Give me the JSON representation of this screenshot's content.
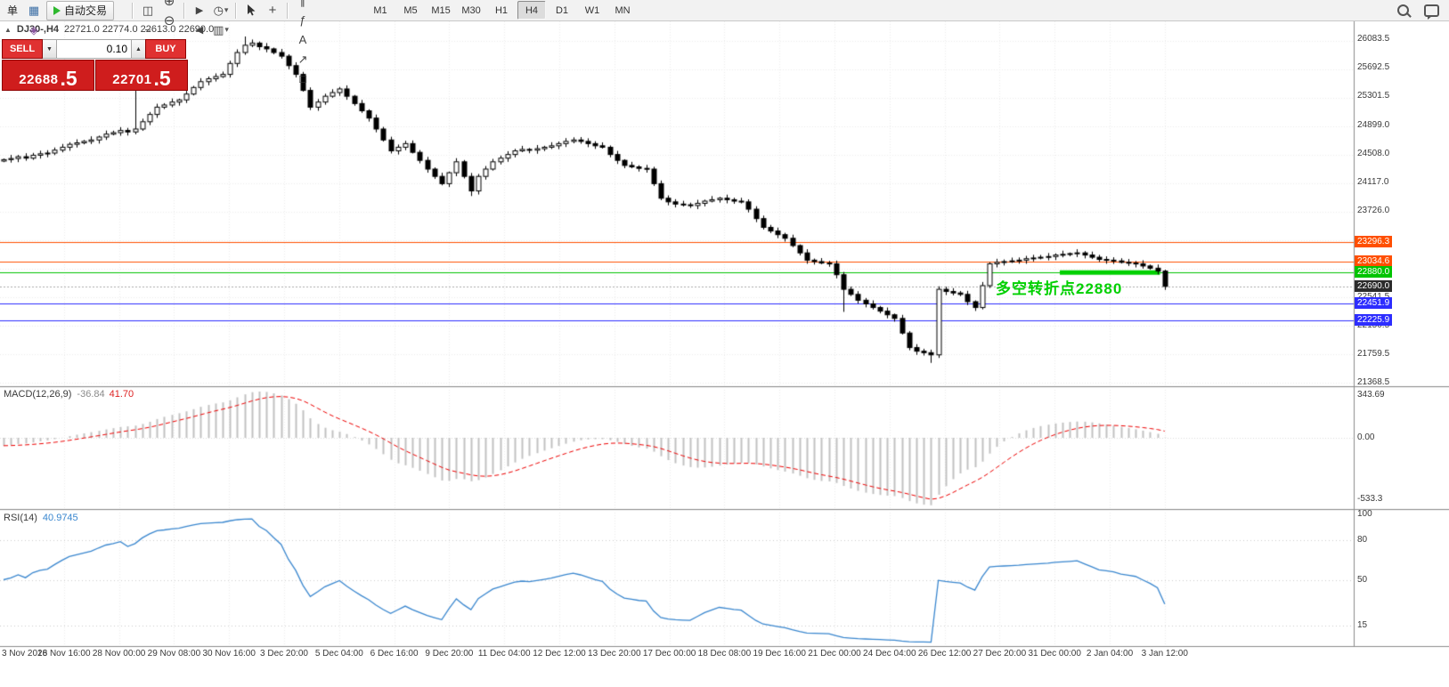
{
  "colors": {
    "toolbar_bg": "#f2f2f2",
    "toolbar_border": "#c8c8c8",
    "bull": "#ffffff",
    "bear": "#000000",
    "candle_border": "#000000",
    "grid": "#e7e7e7",
    "separator": "#8c8c8c",
    "macd_bar": "#c2c2c2",
    "macd_signal": "#ee0000",
    "rsi_line": "#3a87cf",
    "level_orange": "#ff4f00",
    "level_green": "#00c400",
    "level_blue": "#2d2dff",
    "current_price_badge": "#2b2b2b",
    "annotation_green": "#00d000",
    "sell_red": "#cf1d1d",
    "trade_btn_red": "#e03131",
    "auto_trading_green": "#2eb82e"
  },
  "toolbar": {
    "order_label": "单",
    "auto_trading_label": "自动交易",
    "caret_glyph": "▾",
    "left_icons": [
      {
        "name": "new-chart-icon",
        "glyph": "▤",
        "color": "#d79b00"
      },
      {
        "name": "profiles-icon",
        "glyph": "▦",
        "color": "#3b6ea5"
      },
      {
        "name": "navigator-icon",
        "glyph": "◈",
        "color": "#8a56a0"
      }
    ],
    "chart_type_icons": [
      {
        "name": "bars-chart-icon",
        "glyph": "≡"
      },
      {
        "name": "candles-chart-icon",
        "glyph": "◫"
      },
      {
        "name": "line-chart-icon",
        "glyph": "~"
      }
    ],
    "zoom_icons": [
      {
        "name": "zoom-in-icon",
        "glyph": "⊕"
      },
      {
        "name": "zoom-out-icon",
        "glyph": "⊖"
      }
    ],
    "window_icons": [
      {
        "name": "tile-windows-icon",
        "glyph": "⊞"
      },
      {
        "name": "auto-scroll-icon",
        "glyph": "▶"
      },
      {
        "name": "chart-shift-icon",
        "glyph": "◀"
      }
    ],
    "dropdown_buttons": [
      {
        "name": "indicators-button",
        "glyph": "+",
        "color": "#1c9c1c"
      },
      {
        "name": "periods-button",
        "glyph": "◷",
        "color": "#444444"
      },
      {
        "name": "templates-button",
        "glyph": "▥",
        "color": "#444444"
      }
    ],
    "crosshair_glyph": "+",
    "draw_icons": [
      {
        "name": "vertical-line-icon",
        "glyph": "|"
      },
      {
        "name": "horizontal-line-icon",
        "glyph": "—"
      },
      {
        "name": "trendline-icon",
        "glyph": "/"
      },
      {
        "name": "channel-icon",
        "glyph": "∥"
      },
      {
        "name": "fibonacci-icon",
        "glyph": "ƒ"
      },
      {
        "name": "text-tool-icon",
        "glyph": "A"
      },
      {
        "name": "arrow-tool-icon",
        "glyph": "↗"
      },
      {
        "name": "shapes-icon",
        "glyph": "□"
      }
    ],
    "timeframes": [
      {
        "label": "M1",
        "active": false
      },
      {
        "label": "M5",
        "active": false
      },
      {
        "label": "M15",
        "active": false
      },
      {
        "label": "M30",
        "active": false
      },
      {
        "label": "H1",
        "active": false
      },
      {
        "label": "H4",
        "active": true
      },
      {
        "label": "D1",
        "active": false
      },
      {
        "label": "W1",
        "active": false
      },
      {
        "label": "MN",
        "active": false
      }
    ],
    "right_icons": [
      {
        "name": "search-icon"
      },
      {
        "name": "chat-icon"
      }
    ]
  },
  "chart_header": {
    "icon_glyph": "▲",
    "symbol": "DJ30-,H4",
    "ohlc": "22721.0 22774.0 22613.0 22690.0"
  },
  "trade_panel": {
    "sell_label": "SELL",
    "buy_label": "BUY",
    "lot": "0.10",
    "lot_down_glyph": "▼",
    "lot_up_glyph": "▲",
    "sell_price": "22688",
    "sell_pips": ".5",
    "buy_price": "22701",
    "buy_pips": ".5"
  },
  "price_axis": {
    "gridlines": [
      26083.5,
      25692.5,
      25301.5,
      24899.0,
      24508.0,
      24117.0,
      23726.0,
      22541.5,
      22150.5,
      21759.5,
      21368.5
    ],
    "levels": [
      {
        "price": 23296.3,
        "label": "23296.3",
        "color": "level_orange"
      },
      {
        "price": 23034.6,
        "label": "23034.6",
        "color": "level_orange"
      },
      {
        "price": 22880.0,
        "label": "22880.0",
        "color": "level_green"
      },
      {
        "price": 22690.0,
        "label": "22690.0",
        "color": "current_price_badge",
        "current": true
      },
      {
        "price": 22451.9,
        "label": "22451.9",
        "color": "level_blue"
      },
      {
        "price": 22225.9,
        "label": "22225.9",
        "color": "level_blue"
      }
    ]
  },
  "annotation": {
    "text": "多空转折点22880",
    "price": 22880
  },
  "green_segment": {
    "from_index": 145,
    "to_index": 158,
    "price": 22880
  },
  "indicators": {
    "macd": {
      "label": "MACD(12,26,9)",
      "value_main": "-36.84",
      "value_signal": "41.70",
      "axis_labels": [
        "343.69",
        "0.00",
        "-533.3"
      ]
    },
    "rsi": {
      "label": "RSI(14)",
      "value": "40.9745",
      "axis_values": [
        100,
        80,
        50,
        15
      ]
    }
  },
  "time_axis": [
    "3 Nov 2018",
    "26 Nov 16:00",
    "28 Nov 00:00",
    "29 Nov 08:00",
    "30 Nov 16:00",
    "3 Dec 20:00",
    "5 Dec 04:00",
    "6 Dec 16:00",
    "9 Dec 20:00",
    "11 Dec 04:00",
    "12 Dec 12:00",
    "13 Dec 20:00",
    "17 Dec 00:00",
    "18 Dec 08:00",
    "19 Dec 16:00",
    "21 Dec 00:00",
    "24 Dec 04:00",
    "26 Dec 12:00",
    "27 Dec 20:00",
    "31 Dec 00:00",
    "2 Jan 04:00",
    "3 Jan 12:00"
  ],
  "chart_data": [
    {
      "type": "candlestick",
      "symbol": "DJ30-",
      "timeframe": "H4",
      "ohlc_current": {
        "open": 22721.0,
        "high": 22774.0,
        "low": 22613.0,
        "close": 22690.0
      },
      "ylim": [
        21330,
        26330
      ],
      "first_open": 24410,
      "closes": [
        24430,
        24445,
        24470,
        24450,
        24490,
        24510,
        24520,
        24560,
        24600,
        24640,
        24660,
        24680,
        24700,
        24740,
        24780,
        24800,
        24830,
        24810,
        24850,
        24950,
        25050,
        25150,
        25180,
        25220,
        25250,
        25330,
        25420,
        25500,
        25540,
        25570,
        25600,
        25750,
        25900,
        26000,
        26030,
        25980,
        25950,
        25900,
        25850,
        25720,
        25600,
        25380,
        25150,
        25220,
        25300,
        25350,
        25400,
        25300,
        25200,
        25100,
        25000,
        24850,
        24700,
        24550,
        24600,
        24650,
        24530,
        24420,
        24300,
        24200,
        24100,
        24250,
        24400,
        24200,
        24000,
        24200,
        24300,
        24400,
        24450,
        24500,
        24550,
        24570,
        24560,
        24580,
        24600,
        24620,
        24650,
        24680,
        24700,
        24680,
        24650,
        24620,
        24600,
        24500,
        24420,
        24350,
        24330,
        24310,
        24300,
        24100,
        23900,
        23850,
        23820,
        23810,
        23800,
        23830,
        23860,
        23880,
        23900,
        23880,
        23860,
        23850,
        23750,
        23620,
        23500,
        23450,
        23400,
        23350,
        23250,
        23150,
        23050,
        23030,
        23010,
        23000,
        22850,
        22650,
        22580,
        22500,
        22450,
        22400,
        22350,
        22300,
        22250,
        22050,
        21850,
        21800,
        21780,
        21750,
        22650,
        22620,
        22600,
        22580,
        22480,
        22400,
        22700,
        23000,
        23020,
        23030,
        23040,
        23050,
        23070,
        23080,
        23090,
        23100,
        23120,
        23130,
        23140,
        23150,
        23120,
        23090,
        23060,
        23050,
        23040,
        23020,
        23010,
        23000,
        22970,
        22940,
        22900,
        22690
      ],
      "wick_highs": {
        "18": 25430,
        "33": 26120
      },
      "wick_lows": {
        "64": 23930,
        "115": 22340,
        "127": 21640
      },
      "levels": [
        23296.3,
        23034.6,
        22880.0,
        22690.0,
        22451.9,
        22225.9
      ]
    },
    {
      "type": "bar",
      "name": "MACD",
      "params": [
        12,
        26,
        9
      ],
      "current": {
        "macd": -36.84,
        "signal": 41.7
      },
      "ylim": [
        -533.3,
        343.69
      ],
      "note": "histogram and signal computed from candlestick closes (EMA12-EMA26, signal EMA9)"
    },
    {
      "type": "line",
      "name": "RSI",
      "period": 14,
      "current": 40.9745,
      "ylim": [
        0,
        100
      ],
      "levels": [
        80,
        50,
        15
      ],
      "note": "computed from candlestick closes"
    }
  ]
}
